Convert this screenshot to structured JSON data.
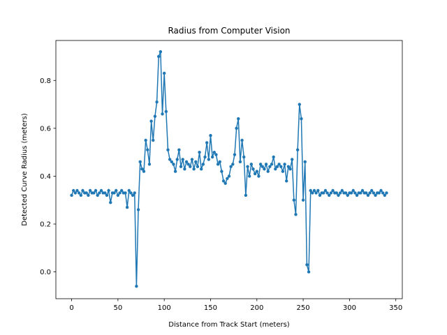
{
  "chart_data": {
    "type": "line",
    "title": "Radius from Computer Vision",
    "x_label": "Distance from Track Start (meters)",
    "y_label": "Detected Curve Radius (meters)",
    "x": [
      0,
      2,
      4,
      6,
      8,
      10,
      12,
      14,
      16,
      18,
      20,
      22,
      24,
      26,
      28,
      30,
      32,
      34,
      36,
      38,
      40,
      42,
      44,
      46,
      48,
      50,
      52,
      54,
      56,
      58,
      60,
      62,
      64,
      66,
      68,
      70,
      72,
      74,
      76,
      78,
      80,
      82,
      84,
      86,
      88,
      90,
      92,
      94,
      96,
      98,
      100,
      102,
      104,
      106,
      108,
      110,
      112,
      114,
      116,
      118,
      120,
      122,
      124,
      126,
      128,
      130,
      132,
      134,
      136,
      138,
      140,
      142,
      144,
      146,
      148,
      150,
      152,
      154,
      156,
      158,
      160,
      162,
      164,
      166,
      168,
      170,
      172,
      174,
      176,
      178,
      180,
      182,
      184,
      186,
      188,
      190,
      192,
      194,
      196,
      198,
      200,
      202,
      204,
      206,
      208,
      210,
      212,
      214,
      216,
      218,
      220,
      222,
      224,
      226,
      228,
      230,
      232,
      234,
      236,
      238,
      240,
      242,
      244,
      246,
      248,
      250,
      252,
      254,
      256,
      258,
      260,
      262,
      264,
      266,
      268,
      270,
      272,
      274,
      276,
      278,
      280,
      282,
      284,
      286,
      288,
      290,
      292,
      294,
      296,
      298,
      300,
      302,
      304,
      306,
      308,
      310,
      312,
      314,
      316,
      318,
      320,
      322,
      324,
      326,
      328,
      330,
      332,
      334,
      336,
      338,
      340
    ],
    "series": [
      {
        "color": "#1f77b4",
        "values": [
          0.32,
          0.34,
          0.33,
          0.34,
          0.33,
          0.32,
          0.34,
          0.33,
          0.33,
          0.32,
          0.34,
          0.33,
          0.33,
          0.34,
          0.32,
          0.33,
          0.34,
          0.33,
          0.33,
          0.32,
          0.34,
          0.29,
          0.33,
          0.33,
          0.34,
          0.32,
          0.33,
          0.34,
          0.33,
          0.33,
          0.27,
          0.34,
          0.33,
          0.32,
          0.33,
          -0.06,
          0.26,
          0.46,
          0.43,
          0.42,
          0.55,
          0.51,
          0.45,
          0.63,
          0.55,
          0.65,
          0.71,
          0.9,
          0.92,
          0.66,
          0.83,
          0.67,
          0.51,
          0.47,
          0.46,
          0.45,
          0.42,
          0.47,
          0.51,
          0.44,
          0.47,
          0.43,
          0.46,
          0.45,
          0.44,
          0.47,
          0.43,
          0.46,
          0.44,
          0.5,
          0.43,
          0.45,
          0.48,
          0.54,
          0.47,
          0.57,
          0.48,
          0.5,
          0.49,
          0.45,
          0.46,
          0.42,
          0.38,
          0.37,
          0.39,
          0.4,
          0.44,
          0.45,
          0.49,
          0.6,
          0.64,
          0.46,
          0.55,
          0.48,
          0.32,
          0.44,
          0.4,
          0.45,
          0.43,
          0.41,
          0.42,
          0.4,
          0.45,
          0.44,
          0.43,
          0.45,
          0.42,
          0.44,
          0.45,
          0.48,
          0.43,
          0.44,
          0.45,
          0.44,
          0.42,
          0.45,
          0.38,
          0.44,
          0.43,
          0.47,
          0.3,
          0.24,
          0.51,
          0.7,
          0.64,
          0.3,
          0.46,
          0.03,
          0.0,
          0.34,
          0.33,
          0.34,
          0.33,
          0.34,
          0.32,
          0.33,
          0.33,
          0.34,
          0.33,
          0.32,
          0.33,
          0.34,
          0.33,
          0.33,
          0.32,
          0.33,
          0.34,
          0.33,
          0.33,
          0.32,
          0.33,
          0.33,
          0.34,
          0.33,
          0.32,
          0.33,
          0.33,
          0.34,
          0.33,
          0.33,
          0.32,
          0.33,
          0.34,
          0.33,
          0.32,
          0.33,
          0.33,
          0.34,
          0.33,
          0.32,
          0.33
        ]
      }
    ],
    "xlim": [
      -17,
      357
    ],
    "ylim": [
      -0.112,
      0.967
    ],
    "xticks": [
      0,
      50,
      100,
      150,
      200,
      250,
      300,
      350
    ],
    "yticks": [
      {
        "value": 0,
        "label": "0.0"
      },
      0.2,
      0.4,
      0.6,
      0.8
    ],
    "grid": false
  }
}
